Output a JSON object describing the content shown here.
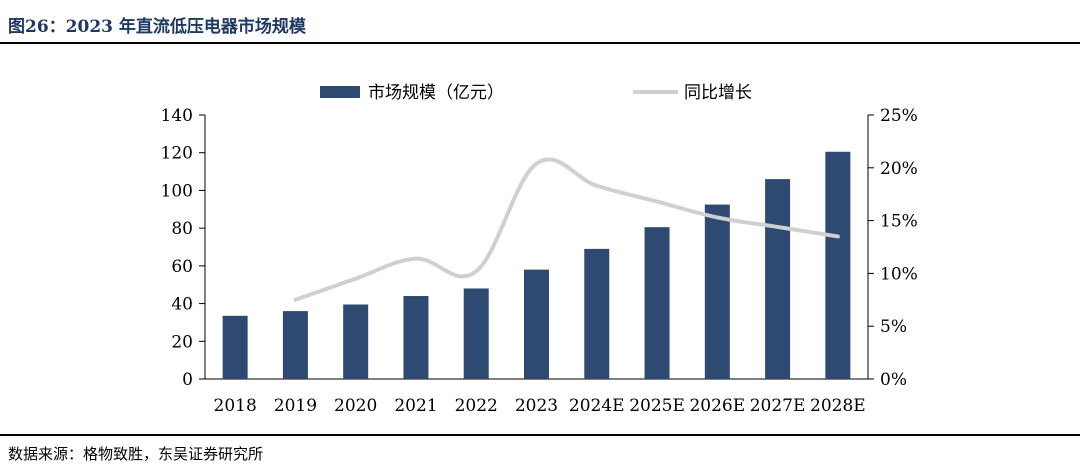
{
  "header": {
    "title": "图26：2023 年直流低压电器市场规模"
  },
  "footer": {
    "source": "数据来源：格物致胜，东吴证券研究所"
  },
  "colors": {
    "bar": "#2e4a73",
    "line": "#d0d0d0",
    "title": "#1f3864"
  },
  "chart_data": {
    "type": "bar",
    "categories": [
      "2018",
      "2019",
      "2020",
      "2021",
      "2022",
      "2023",
      "2024E",
      "2025E",
      "2026E",
      "2027E",
      "2028E"
    ],
    "series": [
      {
        "name": "市场规模（亿元）",
        "type": "bar",
        "axis": "left",
        "values": [
          33.5,
          36,
          39.5,
          44,
          48,
          58,
          69,
          80.5,
          92.5,
          106,
          120.5
        ]
      },
      {
        "name": "同比增长",
        "type": "line",
        "axis": "right",
        "values": [
          null,
          7.5,
          9.5,
          11.4,
          10.2,
          20.4,
          18.3,
          16.8,
          15.3,
          14.4,
          13.5
        ]
      }
    ],
    "ylim_left": [
      0,
      140
    ],
    "yticks_left": [
      "0",
      "20",
      "40",
      "60",
      "80",
      "100",
      "120",
      "140"
    ],
    "ylim_right": [
      0,
      25
    ],
    "yticks_right": [
      "0%",
      "5%",
      "10%",
      "15%",
      "20%",
      "25%"
    ],
    "legend_position": "top-center",
    "grid": false
  }
}
